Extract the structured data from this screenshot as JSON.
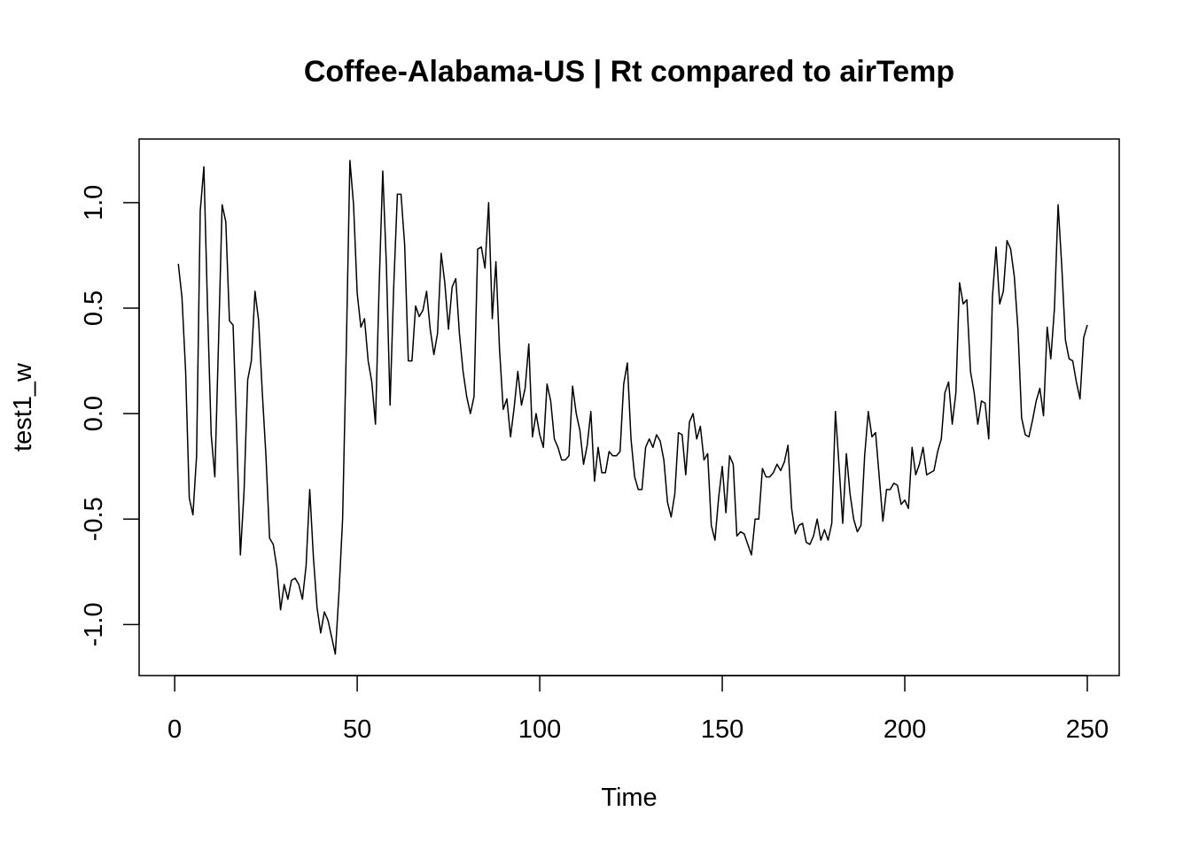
{
  "chart_data": {
    "type": "line",
    "title": "Coffee-Alabama-US | Rt compared to airTemp",
    "xlabel": "Time",
    "ylabel": "test1_w",
    "xlim": [
      1,
      248
    ],
    "ylim": [
      -1.14,
      1.2
    ],
    "x_ticks": [
      0,
      50,
      100,
      150,
      200,
      250
    ],
    "x_tick_labels": [
      "0",
      "50",
      "100",
      "150",
      "200",
      "250"
    ],
    "y_ticks": [
      -1.0,
      -0.5,
      0.0,
      0.5,
      1.0
    ],
    "y_tick_labels": [
      "-1.0",
      "-0.5",
      "0.0",
      "0.5",
      "1.0"
    ],
    "grid": false,
    "legend": "none",
    "series": [
      {
        "color": "#000000",
        "values": [
          0.71,
          0.55,
          0.2,
          -0.4,
          -0.48,
          -0.2,
          0.96,
          1.17,
          0.5,
          -0.1,
          -0.3,
          0.33,
          0.99,
          0.91,
          0.44,
          0.42,
          -0.1,
          -0.67,
          -0.37,
          0.16,
          0.25,
          0.58,
          0.44,
          0.1,
          -0.2,
          -0.59,
          -0.62,
          -0.73,
          -0.93,
          -0.81,
          -0.88,
          -0.79,
          -0.78,
          -0.81,
          -0.88,
          -0.72,
          -0.36,
          -0.68,
          -0.92,
          -1.04,
          -0.94,
          -0.98,
          -1.06,
          -1.14,
          -0.85,
          -0.5,
          0.3,
          1.2,
          0.99,
          0.57,
          0.41,
          0.45,
          0.25,
          0.15,
          -0.05,
          0.6,
          1.15,
          0.7,
          0.04,
          0.6,
          1.04,
          1.04,
          0.8,
          0.25,
          0.25,
          0.51,
          0.46,
          0.49,
          0.58,
          0.4,
          0.28,
          0.38,
          0.76,
          0.62,
          0.4,
          0.6,
          0.64,
          0.38,
          0.2,
          0.08,
          0.0,
          0.08,
          0.78,
          0.79,
          0.69,
          1.0,
          0.45,
          0.72,
          0.3,
          0.02,
          0.07,
          -0.11,
          0.03,
          0.2,
          0.04,
          0.12,
          0.33,
          -0.11,
          0.0,
          -0.1,
          -0.16,
          0.14,
          0.06,
          -0.12,
          -0.16,
          -0.22,
          -0.22,
          -0.2,
          0.13,
          0.0,
          -0.08,
          -0.24,
          -0.15,
          0.01,
          -0.32,
          -0.16,
          -0.28,
          -0.28,
          -0.18,
          -0.2,
          -0.2,
          -0.18,
          0.14,
          0.24,
          -0.12,
          -0.3,
          -0.36,
          -0.36,
          -0.16,
          -0.12,
          -0.16,
          -0.1,
          -0.13,
          -0.22,
          -0.42,
          -0.49,
          -0.38,
          -0.09,
          -0.1,
          -0.29,
          -0.04,
          0.0,
          -0.12,
          -0.06,
          -0.22,
          -0.19,
          -0.53,
          -0.6,
          -0.4,
          -0.25,
          -0.47,
          -0.2,
          -0.24,
          -0.58,
          -0.56,
          -0.57,
          -0.62,
          -0.67,
          -0.5,
          -0.5,
          -0.26,
          -0.3,
          -0.3,
          -0.28,
          -0.24,
          -0.27,
          -0.23,
          -0.15,
          -0.45,
          -0.57,
          -0.53,
          -0.52,
          -0.61,
          -0.62,
          -0.58,
          -0.5,
          -0.6,
          -0.55,
          -0.6,
          -0.52,
          0.01,
          -0.25,
          -0.52,
          -0.19,
          -0.38,
          -0.5,
          -0.56,
          -0.53,
          -0.2,
          0.01,
          -0.11,
          -0.09,
          -0.3,
          -0.51,
          -0.36,
          -0.36,
          -0.33,
          -0.34,
          -0.43,
          -0.41,
          -0.45,
          -0.16,
          -0.29,
          -0.24,
          -0.16,
          -0.29,
          -0.28,
          -0.27,
          -0.18,
          -0.12,
          0.1,
          0.15,
          -0.05,
          0.1,
          0.62,
          0.52,
          0.54,
          0.2,
          0.1,
          -0.05,
          0.06,
          0.05,
          -0.12,
          0.55,
          0.79,
          0.52,
          0.58,
          0.82,
          0.78,
          0.65,
          0.4,
          -0.02,
          -0.1,
          -0.11,
          -0.03,
          0.06,
          0.12,
          -0.01,
          0.41,
          0.26,
          0.5,
          0.99,
          0.7,
          0.35,
          0.26,
          0.25,
          0.15,
          0.07,
          0.36,
          0.42
        ]
      }
    ]
  }
}
